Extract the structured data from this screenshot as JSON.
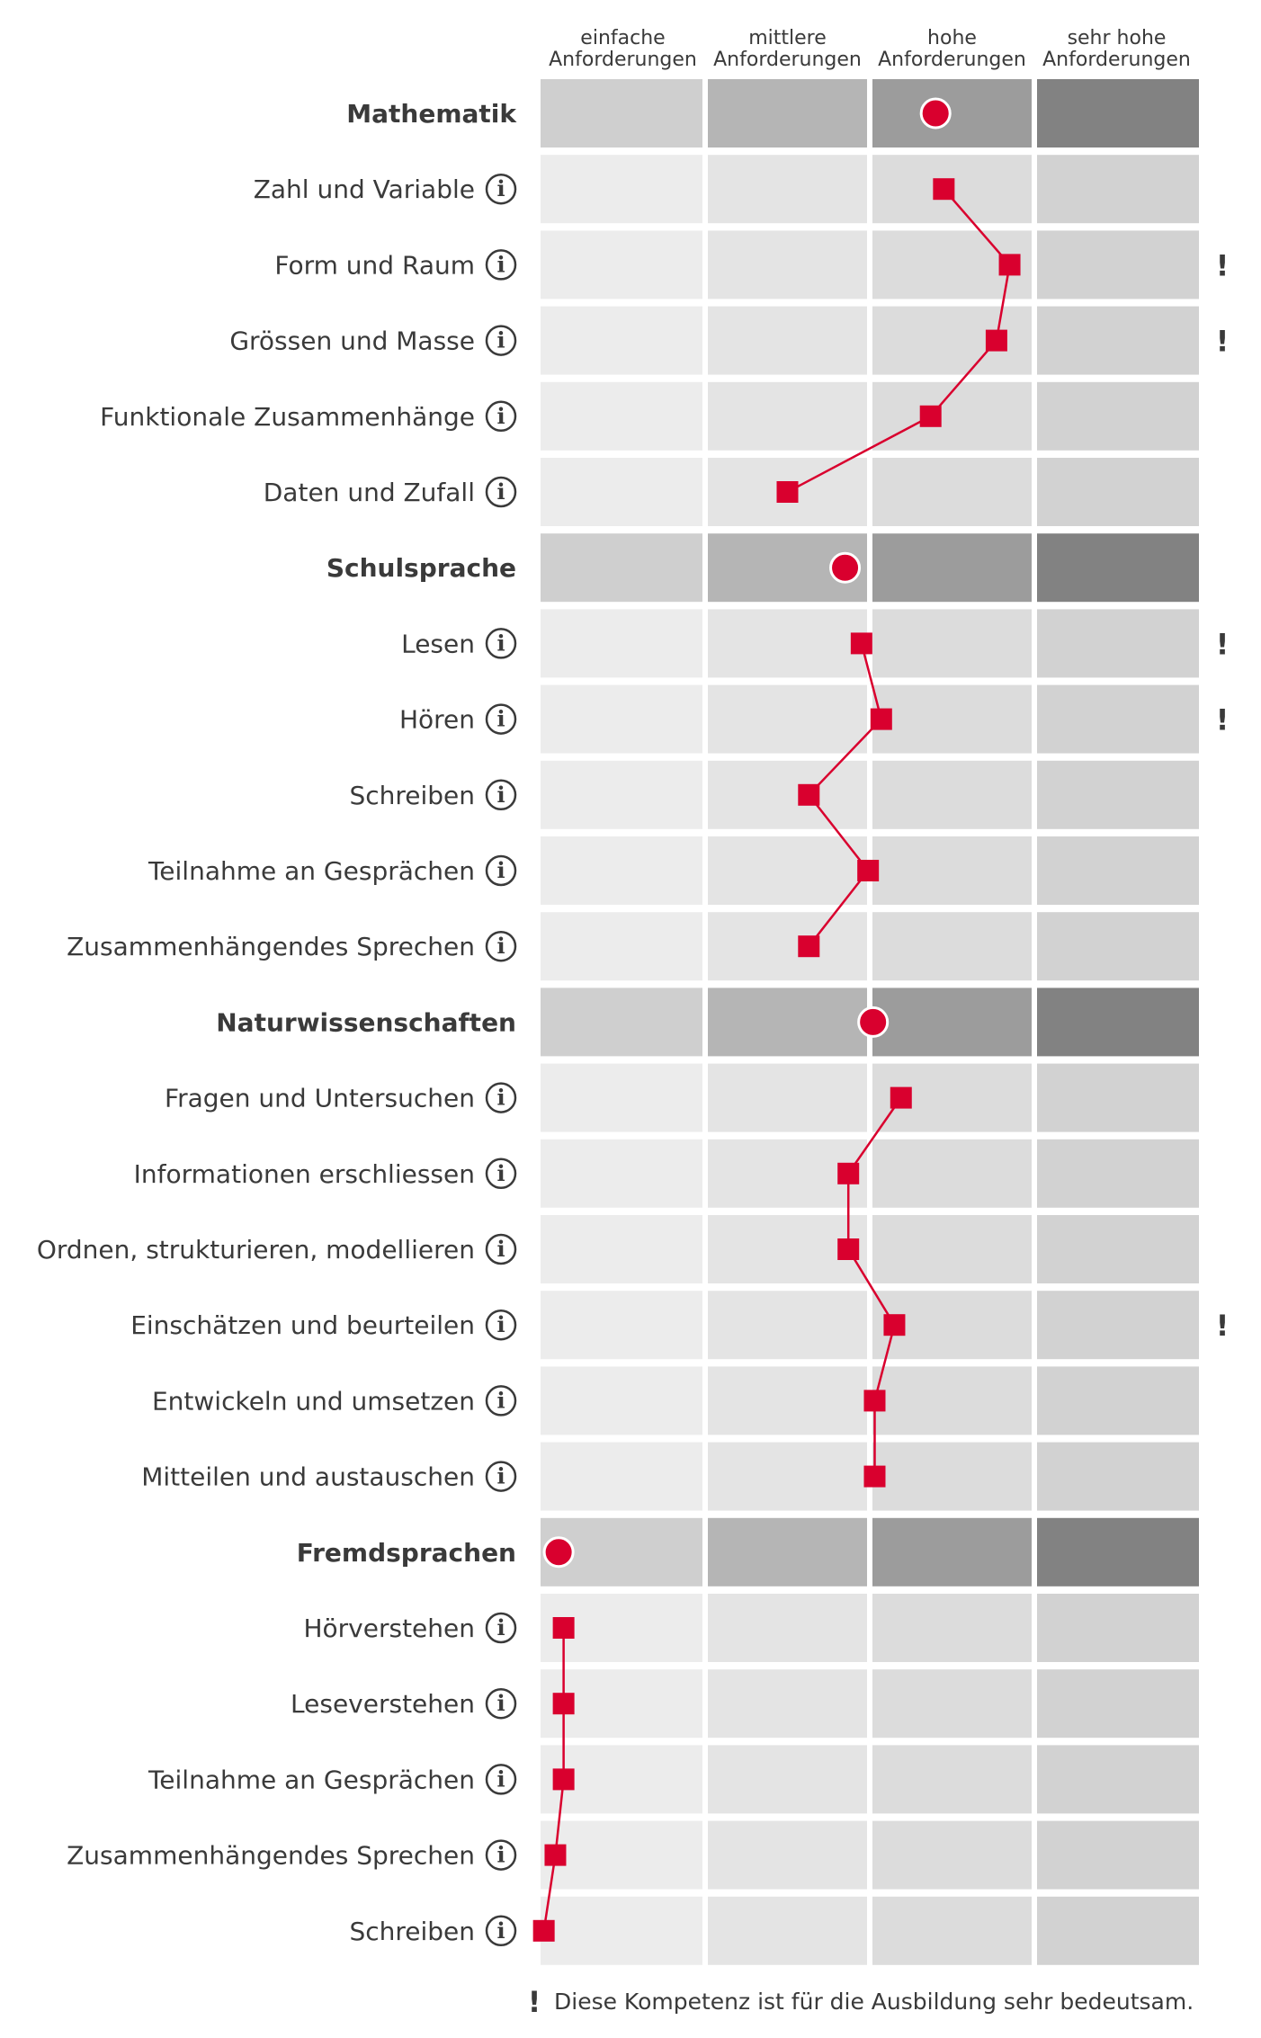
{
  "columns": [
    {
      "line1": "einfache",
      "line2": "Anforderungen"
    },
    {
      "line1": "mittlere",
      "line2": "Anforderungen"
    },
    {
      "line1": "hohe",
      "line2": "Anforderungen"
    },
    {
      "line1": "sehr hohe",
      "line2": "Anforderungen"
    }
  ],
  "info_glyph": "i",
  "important_glyph": "!",
  "footnote": {
    "glyph": "!",
    "text": "Diese Kompetenz ist für die Ausbildung sehr bedeutsam."
  },
  "colors": {
    "marker": "#d9002e",
    "group_bands": [
      "#cfcfcf",
      "#b5b5b5",
      "#9c9c9c",
      "#828282"
    ],
    "item_bands": [
      "#ececec",
      "#e4e4e4",
      "#dcdcdc",
      "#d2d2d2"
    ],
    "text": "#3a3a3a"
  },
  "chart_data": {
    "type": "dot-profile",
    "scale": {
      "min": 0,
      "max": 4,
      "bands": [
        "einfache Anforderungen",
        "mittlere Anforderungen",
        "hohe Anforderungen",
        "sehr hohe Anforderungen"
      ]
    },
    "groups": [
      {
        "name": "Mathematik",
        "value": 2.4,
        "items": [
          {
            "label": "Zahl und Variable",
            "value": 2.45,
            "important": false
          },
          {
            "label": "Form und Raum",
            "value": 2.85,
            "important": true
          },
          {
            "label": "Grössen und Masse",
            "value": 2.77,
            "important": true
          },
          {
            "label": "Funktionale Zusammenhänge",
            "value": 2.37,
            "important": false
          },
          {
            "label": "Daten und Zufall",
            "value": 1.5,
            "important": false
          }
        ]
      },
      {
        "name": "Schulsprache",
        "value": 1.85,
        "items": [
          {
            "label": "Lesen",
            "value": 1.95,
            "important": true
          },
          {
            "label": "Hören",
            "value": 2.07,
            "important": true
          },
          {
            "label": "Schreiben",
            "value": 1.63,
            "important": false
          },
          {
            "label": "Teilnahme an Gesprächen",
            "value": 1.99,
            "important": false
          },
          {
            "label": "Zusammenhängendes Sprechen",
            "value": 1.63,
            "important": false
          }
        ]
      },
      {
        "name": "Naturwissenschaften",
        "value": 2.02,
        "items": [
          {
            "label": "Fragen und Untersuchen",
            "value": 2.19,
            "important": false
          },
          {
            "label": "Informationen erschliessen",
            "value": 1.87,
            "important": false
          },
          {
            "label": "Ordnen, strukturieren, modellieren",
            "value": 1.87,
            "important": false
          },
          {
            "label": "Einschätzen und beurteilen",
            "value": 2.15,
            "important": true
          },
          {
            "label": "Entwickeln und umsetzen",
            "value": 2.03,
            "important": false
          },
          {
            "label": "Mitteilen und austauschen",
            "value": 2.03,
            "important": false
          }
        ]
      },
      {
        "name": "Fremdsprachen",
        "value": 0.11,
        "items": [
          {
            "label": "Hörverstehen",
            "value": 0.14,
            "important": false
          },
          {
            "label": "Leseverstehen",
            "value": 0.14,
            "important": false
          },
          {
            "label": "Teilnahme an Gesprächen",
            "value": 0.14,
            "important": false
          },
          {
            "label": "Zusammenhängendes Sprechen",
            "value": 0.09,
            "important": false
          },
          {
            "label": "Schreiben",
            "value": 0.02,
            "important": false
          }
        ]
      }
    ]
  }
}
